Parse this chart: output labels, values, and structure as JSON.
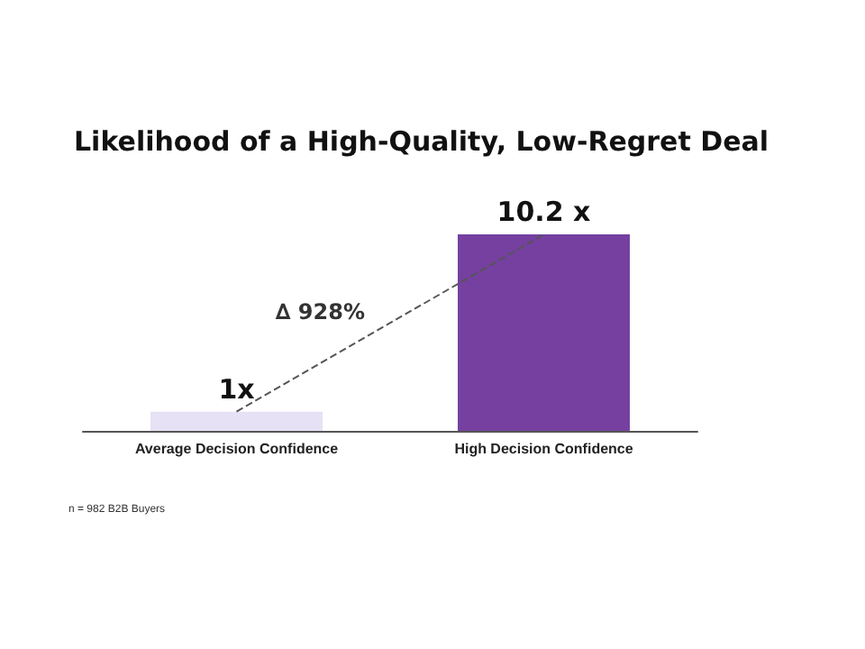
{
  "chart_data": {
    "type": "bar",
    "title": "Likelihood of a High-Quality, Low-Regret Deal",
    "categories": [
      "Average Decision Confidence",
      "High Decision Confidence"
    ],
    "series": [
      {
        "values": [
          1,
          10.2
        ],
        "colors": [
          "#e6e1f5",
          "#7540a0"
        ],
        "value_labels": [
          "1x",
          "10.2 x"
        ]
      },
      {
        "type": "line",
        "values": [
          1,
          10.2
        ],
        "color": "#555555",
        "line_style": "dashed",
        "marker": "none"
      }
    ],
    "annotations": [
      "∆ 928%",
      "n = 982 B2B Buyers"
    ]
  }
}
